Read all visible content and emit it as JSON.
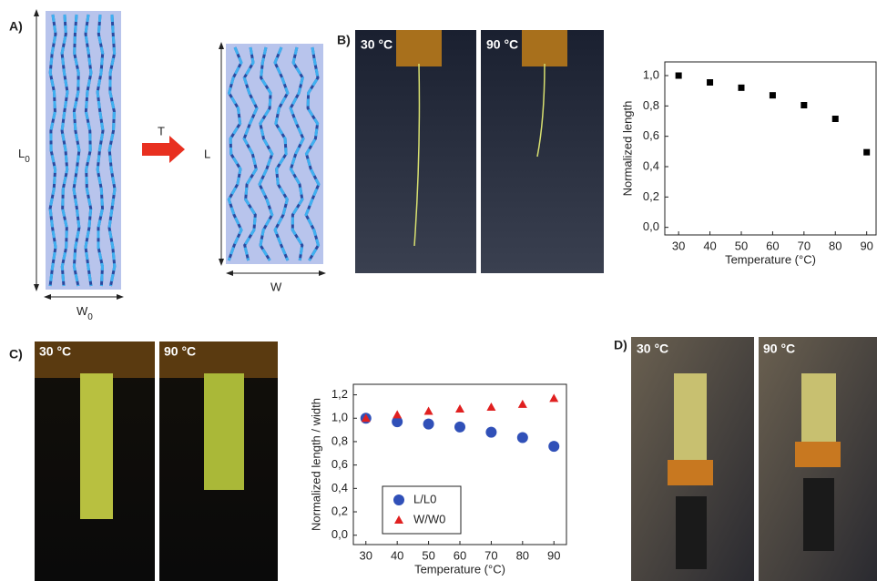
{
  "figure": {
    "panel_labels": [
      "A)",
      "B)",
      "C)",
      "D)"
    ],
    "diagram": {
      "initial_length": {
        "main": "L",
        "sub": "0"
      },
      "initial_width": {
        "main": "W",
        "sub": "0"
      },
      "stimulus": "T",
      "final_length": "L",
      "final_width": "W"
    },
    "photo_labels": {
      "B": [
        "30 °C",
        "90 °C"
      ],
      "C": [
        "30 °C",
        "90 °C"
      ],
      "D": [
        "30 °C",
        "90 °C"
      ]
    }
  },
  "chart_data": [
    {
      "type": "scatter",
      "xlabel": "Temperature (°C)",
      "ylabel": "Normalized length",
      "x": [
        30,
        40,
        50,
        60,
        70,
        80,
        90
      ],
      "series": [
        {
          "values": [
            1.0,
            0.955,
            0.92,
            0.87,
            0.805,
            0.715,
            0.495
          ],
          "color": "#000000",
          "marker": "square"
        }
      ],
      "xlim": [
        25.6,
        93
      ],
      "ylim": [
        -0.05,
        1.09
      ],
      "xticks": [
        30,
        40,
        50,
        60,
        70,
        80,
        90
      ],
      "yticks": [
        {
          "value": 0.0,
          "label": "0,0"
        },
        {
          "value": 0.2,
          "label": "0,2"
        },
        {
          "value": 0.4,
          "label": "0,4"
        },
        {
          "value": 0.6,
          "label": "0,6"
        },
        {
          "value": 0.8,
          "label": "0,8"
        },
        {
          "value": 1.0,
          "label": "1,0"
        }
      ]
    },
    {
      "type": "scatter",
      "xlabel": "Temperature (°C)",
      "ylabel": "Normalized length / width",
      "x": [
        30,
        40,
        50,
        60,
        70,
        80,
        90
      ],
      "series": [
        {
          "name": "L/L0",
          "values": [
            1.0,
            0.97,
            0.95,
            0.925,
            0.88,
            0.835,
            0.76
          ],
          "color": "#3050b8",
          "marker": "circle"
        },
        {
          "name": "W/W0",
          "values": [
            1.0,
            1.03,
            1.06,
            1.08,
            1.095,
            1.12,
            1.17
          ],
          "color": "#e02020",
          "marker": "triangle"
        }
      ],
      "xlim": [
        26,
        94
      ],
      "ylim": [
        -0.08,
        1.29
      ],
      "xticks": [
        30,
        40,
        50,
        60,
        70,
        80,
        90
      ],
      "yticks": [
        {
          "value": 0.0,
          "label": "0,0"
        },
        {
          "value": 0.2,
          "label": "0,2"
        },
        {
          "value": 0.4,
          "label": "0,4"
        },
        {
          "value": 0.6,
          "label": "0,6"
        },
        {
          "value": 0.8,
          "label": "0,8"
        },
        {
          "value": 1.0,
          "label": "1,0"
        },
        {
          "value": 1.2,
          "label": "1,2"
        }
      ],
      "legend": "lower left"
    }
  ]
}
